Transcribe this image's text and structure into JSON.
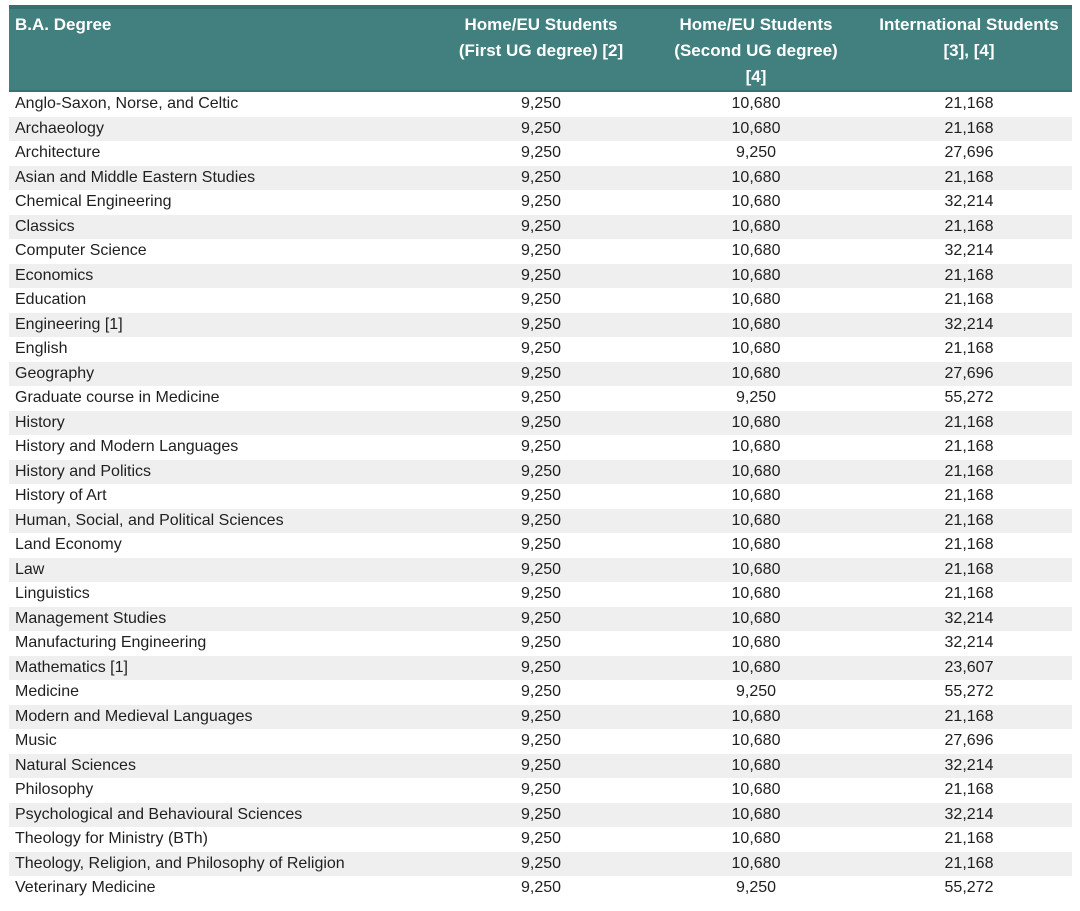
{
  "colors": {
    "header_background": "#42807f",
    "header_top_edge": "#376e6e",
    "header_text": "#ffffff",
    "row_stripe": "#efefef",
    "row_text": "#1f1f1f",
    "page_background": "#ffffff"
  },
  "table": {
    "columns": [
      {
        "label": "B.A. Degree",
        "align": "left"
      },
      {
        "label": "Home/EU Students\n(First UG degree) [2]",
        "align": "center"
      },
      {
        "label": "Home/EU Students\n(Second UG degree)\n[4]",
        "align": "center"
      },
      {
        "label": "International Students\n[3], [4]",
        "align": "center"
      }
    ],
    "rows": [
      [
        "Anglo-Saxon, Norse, and Celtic",
        "9,250",
        "10,680",
        "21,168"
      ],
      [
        "Archaeology",
        "9,250",
        "10,680",
        "21,168"
      ],
      [
        "Architecture",
        "9,250",
        "9,250",
        "27,696"
      ],
      [
        "Asian and Middle Eastern Studies",
        "9,250",
        "10,680",
        "21,168"
      ],
      [
        "Chemical Engineering",
        "9,250",
        "10,680",
        "32,214"
      ],
      [
        "Classics",
        "9,250",
        "10,680",
        "21,168"
      ],
      [
        "Computer Science",
        "9,250",
        "10,680",
        "32,214"
      ],
      [
        "Economics",
        "9,250",
        "10,680",
        "21,168"
      ],
      [
        "Education",
        "9,250",
        "10,680",
        "21,168"
      ],
      [
        "Engineering [1]",
        "9,250",
        "10,680",
        "32,214"
      ],
      [
        "English",
        "9,250",
        "10,680",
        "21,168"
      ],
      [
        "Geography",
        "9,250",
        "10,680",
        "27,696"
      ],
      [
        "Graduate course in Medicine",
        "9,250",
        "9,250",
        "55,272"
      ],
      [
        "History",
        "9,250",
        "10,680",
        "21,168"
      ],
      [
        "History and Modern Languages",
        "9,250",
        "10,680",
        "21,168"
      ],
      [
        "History and Politics",
        "9,250",
        "10,680",
        "21,168"
      ],
      [
        "History of Art",
        "9,250",
        "10,680",
        "21,168"
      ],
      [
        "Human, Social, and Political Sciences",
        "9,250",
        "10,680",
        "21,168"
      ],
      [
        "Land Economy",
        "9,250",
        "10,680",
        "21,168"
      ],
      [
        "Law",
        "9,250",
        "10,680",
        "21,168"
      ],
      [
        "Linguistics",
        "9,250",
        "10,680",
        "21,168"
      ],
      [
        "Management Studies",
        "9,250",
        "10,680",
        "32,214"
      ],
      [
        "Manufacturing Engineering",
        "9,250",
        "10,680",
        "32,214"
      ],
      [
        "Mathematics [1]",
        "9,250",
        "10,680",
        "23,607"
      ],
      [
        "Medicine",
        "9,250",
        "9,250",
        "55,272"
      ],
      [
        "Modern and Medieval Languages",
        "9,250",
        "10,680",
        "21,168"
      ],
      [
        "Music",
        "9,250",
        "10,680",
        "27,696"
      ],
      [
        "Natural Sciences",
        "9,250",
        "10,680",
        "32,214"
      ],
      [
        "Philosophy",
        "9,250",
        "10,680",
        "21,168"
      ],
      [
        "Psychological and Behavioural Sciences",
        "9,250",
        "10,680",
        "32,214"
      ],
      [
        "Theology for Ministry (BTh)",
        "9,250",
        "10,680",
        "21,168"
      ],
      [
        "Theology, Religion, and Philosophy of Religion",
        "9,250",
        "10,680",
        "21,168"
      ],
      [
        "Veterinary Medicine",
        "9,250",
        "9,250",
        "55,272"
      ]
    ]
  }
}
